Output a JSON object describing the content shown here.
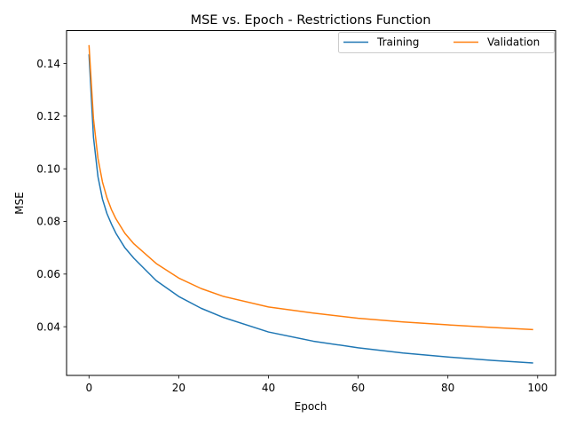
{
  "chart_data": {
    "type": "line",
    "title": "MSE vs. Epoch - Restrictions Function",
    "xlabel": "Epoch",
    "ylabel": "MSE",
    "xlim": [
      -5,
      104
    ],
    "ylim": [
      0.0215,
      0.1525
    ],
    "x_ticks": [
      0,
      20,
      40,
      60,
      80,
      100
    ],
    "x_tick_labels": [
      "0",
      "20",
      "40",
      "60",
      "80",
      "100"
    ],
    "y_ticks": [
      0.04,
      0.06,
      0.08,
      0.1,
      0.12,
      0.14
    ],
    "y_tick_labels": [
      "0.04",
      "0.06",
      "0.08",
      "0.10",
      "0.12",
      "0.14"
    ],
    "grid": false,
    "legend_position": "top-right",
    "legend_columns": 2,
    "x": [
      0,
      1,
      2,
      3,
      4,
      5,
      6,
      8,
      10,
      15,
      20,
      25,
      30,
      40,
      50,
      60,
      70,
      80,
      90,
      99
    ],
    "series": [
      {
        "name": "Training",
        "color": "#1f77b4",
        "values": [
          0.1435,
          0.112,
          0.097,
          0.0885,
          0.083,
          0.079,
          0.0755,
          0.07,
          0.066,
          0.0575,
          0.0515,
          0.047,
          0.0435,
          0.038,
          0.0345,
          0.032,
          0.03,
          0.0285,
          0.0272,
          0.0262
        ]
      },
      {
        "name": "Validation",
        "color": "#ff7f0e",
        "values": [
          0.147,
          0.119,
          0.104,
          0.095,
          0.089,
          0.0845,
          0.081,
          0.0755,
          0.0715,
          0.064,
          0.0585,
          0.0545,
          0.0515,
          0.0475,
          0.0452,
          0.0432,
          0.0418,
          0.0407,
          0.0397,
          0.0389
        ]
      }
    ]
  }
}
